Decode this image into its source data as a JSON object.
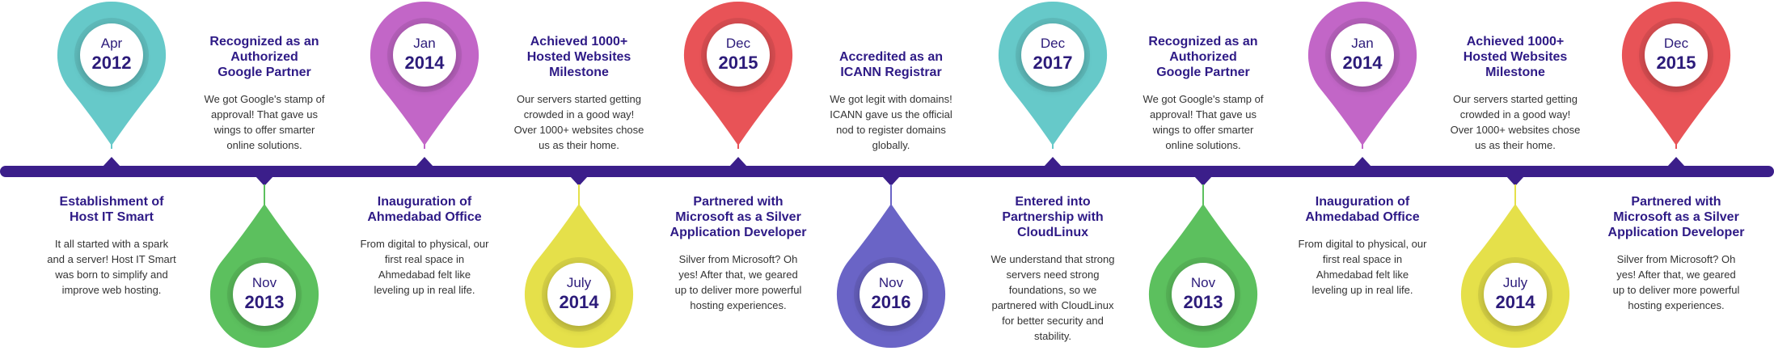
{
  "milestones": [
    {
      "month": "Apr",
      "year": "2012",
      "title": "Establishment of\nHost IT Smart",
      "desc": "It all started with a spark\nand a server! Host IT Smart\nwas born to simplify and\nimprove web hosting.",
      "color": "#66c9c9",
      "side": "up-pin-down-text"
    },
    {
      "month": "Nov",
      "year": "2013",
      "title": "Recognized as an\nAuthorized\nGoogle Partner",
      "desc": "We got Google's stamp of\napproval! That gave us\nwings to offer smarter\nonline solutions.",
      "color": "#5cc05e",
      "side": "down-pin-up-text"
    },
    {
      "month": "Jan",
      "year": "2014",
      "title": "Inauguration of\nAhmedabad Office",
      "desc": "From digital to physical, our\nfirst real space in\nAhmedabad felt like\nleveling up in real life.",
      "color": "#c266c7",
      "side": "up-pin-down-text"
    },
    {
      "month": "July",
      "year": "2014",
      "title": "Achieved 1000+\nHosted Websites\nMilestone",
      "desc": "Our servers started getting\ncrowded in a good way!\nOver 1000+ websites chose\nus as their home.",
      "color": "#e5e04a",
      "side": "down-pin-up-text"
    },
    {
      "month": "Dec",
      "year": "2015",
      "title": "Partnered with\nMicrosoft as a Silver\nApplication Developer",
      "desc": "Silver from Microsoft? Oh\nyes! After that, we geared\nup to deliver more powerful\nhosting experiences.",
      "color": "#e85357",
      "side": "up-pin-down-text"
    },
    {
      "month": "Nov",
      "year": "2016",
      "title": "Accredited as an\nICANN Registrar",
      "desc": "We got legit with domains!\nICANN gave us the official\nnod to register domains\nglobally.",
      "color": "#6a64c6",
      "side": "down-pin-up-text"
    },
    {
      "month": "Dec",
      "year": "2017",
      "title": "Entered into\nPartnership with\nCloudLinux",
      "desc": "We understand that strong\nservers need strong\nfoundations, so we\npartnered with CloudLinux\nfor better security and\nstability.",
      "color": "#66c9c9",
      "side": "up-pin-down-text"
    },
    {
      "month": "Nov",
      "year": "2013",
      "title": "Recognized as an\nAuthorized\nGoogle Partner",
      "desc": "We got Google's stamp of\napproval! That gave us\nwings to offer smarter\nonline solutions.",
      "color": "#5cc05e",
      "side": "down-pin-up-text"
    },
    {
      "month": "Jan",
      "year": "2014",
      "title": "Inauguration of\nAhmedabad Office",
      "desc": "From digital to physical, our\nfirst real space in\nAhmedabad felt like\nleveling up in real life.",
      "color": "#c266c7",
      "side": "up-pin-down-text"
    },
    {
      "month": "July",
      "year": "2014",
      "title": "Achieved 1000+\nHosted Websites\nMilestone",
      "desc": "Our servers started getting\ncrowded in a good way!\nOver 1000+ websites chose\nus as their home.",
      "color": "#e5e04a",
      "side": "down-pin-up-text"
    },
    {
      "month": "Dec",
      "year": "2015",
      "title": "Partnered with\nMicrosoft as a Silver\nApplication Developer",
      "desc": "Silver from Microsoft? Oh\nyes! After that, we geared\nup to deliver more powerful\nhosting experiences.",
      "color": "#e85357",
      "side": "up-pin-down-text"
    }
  ],
  "timeline_color": "#3b1e8a",
  "title_color": "#2e1a86"
}
